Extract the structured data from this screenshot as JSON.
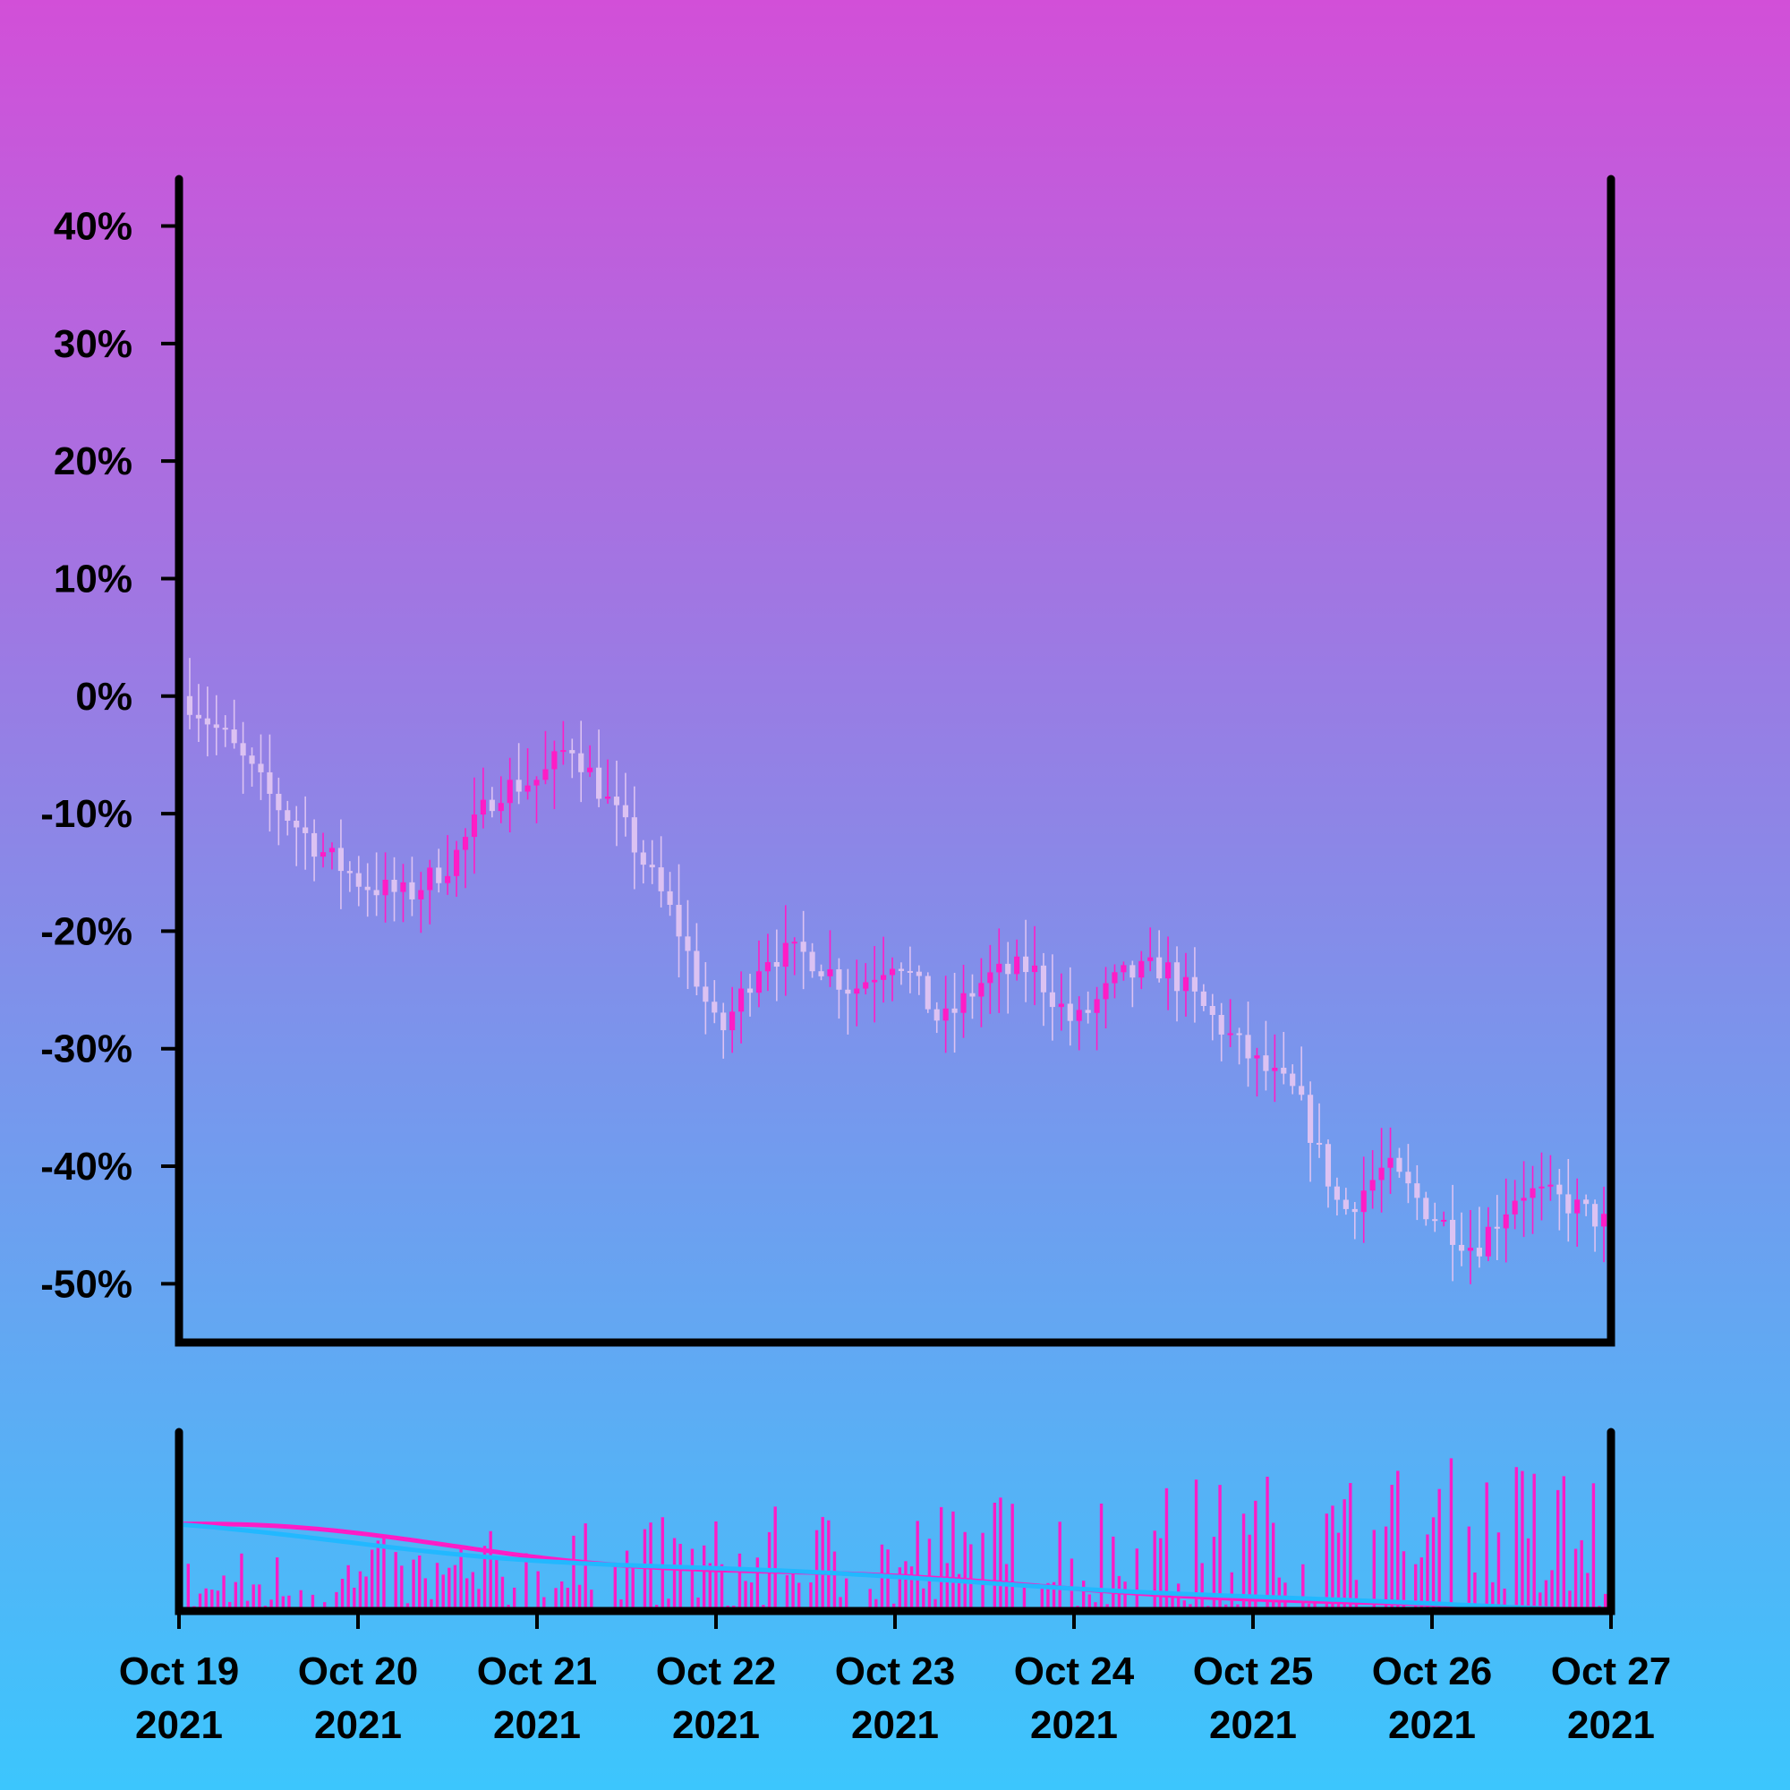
{
  "chart_data": [
    {
      "type": "candlestick",
      "y_unit": "percent change",
      "ylim": [
        -55,
        44
      ],
      "yticks": [
        {
          "value": 40,
          "label": "40%"
        },
        {
          "value": 30,
          "label": "30%"
        },
        {
          "value": 20,
          "label": "20%"
        },
        {
          "value": 10,
          "label": "10%"
        },
        {
          "value": 0,
          "label": "0%"
        },
        {
          "value": -10,
          "label": "-10%"
        },
        {
          "value": -20,
          "label": "-20%"
        },
        {
          "value": -30,
          "label": "-30%"
        },
        {
          "value": -40,
          "label": "-40%"
        },
        {
          "value": -50,
          "label": "-50%"
        }
      ],
      "x_range": [
        "2021-10-19",
        "2021-10-27"
      ],
      "up_color": "#ff1cc6",
      "down_color": "#dcc2f2",
      "close_path": [
        [
          "2021-10-19 00:00",
          0
        ],
        [
          "2021-10-19 06:00",
          -4
        ],
        [
          "2021-10-19 12:00",
          -9
        ],
        [
          "2021-10-19 18:00",
          -13
        ],
        [
          "2021-10-20 00:00",
          -16
        ],
        [
          "2021-10-20 06:00",
          -17
        ],
        [
          "2021-10-20 12:00",
          -14
        ],
        [
          "2021-10-20 18:00",
          -8
        ],
        [
          "2021-10-21 00:00",
          -7
        ],
        [
          "2021-10-21 04:00",
          -4
        ],
        [
          "2021-10-21 12:00",
          -12
        ],
        [
          "2021-10-21 18:00",
          -19
        ],
        [
          "2021-10-22 00:00",
          -29
        ],
        [
          "2021-10-22 06:00",
          -22
        ],
        [
          "2021-10-22 12:00",
          -22
        ],
        [
          "2021-10-22 18:00",
          -25
        ],
        [
          "2021-10-23 00:00",
          -22
        ],
        [
          "2021-10-23 06:00",
          -28
        ],
        [
          "2021-10-23 12:00",
          -24
        ],
        [
          "2021-10-23 18:00",
          -23
        ],
        [
          "2021-10-24 00:00",
          -28
        ],
        [
          "2021-10-24 06:00",
          -24
        ],
        [
          "2021-10-24 12:00",
          -23
        ],
        [
          "2021-10-24 18:00",
          -27
        ],
        [
          "2021-10-25 00:00",
          -31
        ],
        [
          "2021-10-25 06:00",
          -34
        ],
        [
          "2021-10-25 12:00",
          -44
        ],
        [
          "2021-10-25 18:00",
          -40
        ],
        [
          "2021-10-26 00:00",
          -44
        ],
        [
          "2021-10-26 06:00",
          -47
        ],
        [
          "2021-10-26 12:00",
          -42
        ],
        [
          "2021-10-26 18:00",
          -43
        ],
        [
          "2021-10-27 00:00",
          -45
        ]
      ],
      "candle_count": 160
    },
    {
      "type": "bar",
      "panel": "volume",
      "x_range": [
        "2021-10-19",
        "2021-10-27"
      ],
      "bar_color": "#ff1cc6",
      "overlay_lines": [
        {
          "color": "#ff1cc6"
        },
        {
          "color": "#22b8ff"
        }
      ]
    }
  ],
  "xticks": [
    {
      "date": "2021-10-19",
      "line1": "Oct 19",
      "line2": "2021"
    },
    {
      "date": "2021-10-20",
      "line1": "Oct 20",
      "line2": "2021"
    },
    {
      "date": "2021-10-21",
      "line1": "Oct 21",
      "line2": "2021"
    },
    {
      "date": "2021-10-22",
      "line1": "Oct 22",
      "line2": "2021"
    },
    {
      "date": "2021-10-23",
      "line1": "Oct 23",
      "line2": "2021"
    },
    {
      "date": "2021-10-24",
      "line1": "Oct 24",
      "line2": "2021"
    },
    {
      "date": "2021-10-25",
      "line1": "Oct 25",
      "line2": "2021"
    },
    {
      "date": "2021-10-26",
      "line1": "Oct 26",
      "line2": "2021"
    },
    {
      "date": "2021-10-27",
      "line1": "Oct 27",
      "line2": "2021"
    }
  ]
}
